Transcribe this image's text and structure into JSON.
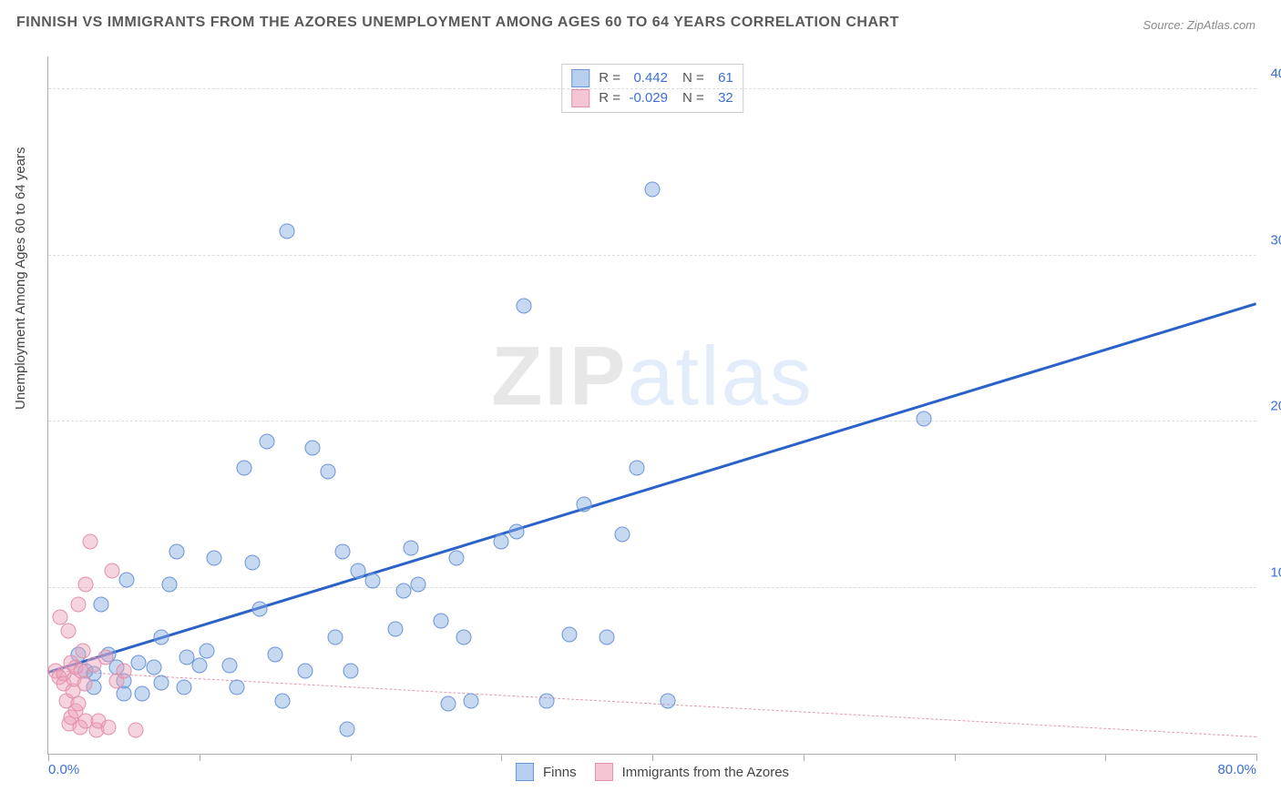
{
  "title": "FINNISH VS IMMIGRANTS FROM THE AZORES UNEMPLOYMENT AMONG AGES 60 TO 64 YEARS CORRELATION CHART",
  "source": "Source: ZipAtlas.com",
  "yaxis_label": "Unemployment Among Ages 60 to 64 years",
  "watermark_a": "ZIP",
  "watermark_b": "atlas",
  "chart": {
    "type": "scatter",
    "background_color": "#ffffff",
    "grid_color": "#dcdcdc",
    "axis_color": "#b0b0b0",
    "tick_label_color": "#3b6fd6",
    "tick_label_fontsize": 15,
    "xlim": [
      0,
      80
    ],
    "ylim": [
      0,
      42
    ],
    "xticks": [
      0,
      10,
      20,
      30,
      40,
      50,
      60,
      70,
      80
    ],
    "yticks": [
      10,
      20,
      30,
      40
    ],
    "xtick_labels": {
      "0": "0.0%",
      "80": "80.0%"
    },
    "ytick_labels": {
      "10": "10.0%",
      "20": "20.0%",
      "30": "30.0%",
      "40": "40.0%"
    },
    "marker_radius": 8.5,
    "marker_border_width": 1.2
  },
  "series": [
    {
      "id": "finns",
      "label": "Finns",
      "fill_color": "rgba(130,170,225,0.45)",
      "border_color": "#6a95d6",
      "swatch_fill": "#b9cfef",
      "swatch_border": "#6a95d6",
      "stats": {
        "R": "0.442",
        "N": "61"
      },
      "trend": {
        "x1": 0,
        "y1": 4.8,
        "x2": 80,
        "y2": 27.0,
        "color": "#2b62c9",
        "width": 3,
        "dash": false
      },
      "points": [
        [
          2,
          6
        ],
        [
          2.5,
          5
        ],
        [
          3,
          4.8
        ],
        [
          3,
          4
        ],
        [
          3.5,
          9
        ],
        [
          4,
          6
        ],
        [
          4.5,
          5.2
        ],
        [
          5,
          4.4
        ],
        [
          5,
          3.6
        ],
        [
          5.2,
          10.5
        ],
        [
          6,
          5.5
        ],
        [
          6.2,
          3.6
        ],
        [
          7,
          5.2
        ],
        [
          7.5,
          4.3
        ],
        [
          8,
          10.2
        ],
        [
          8.5,
          12.2
        ],
        [
          9,
          4
        ],
        [
          9.2,
          5.8
        ],
        [
          10,
          5.3
        ],
        [
          10.5,
          6.2
        ],
        [
          11,
          11.8
        ],
        [
          12,
          5.3
        ],
        [
          12.5,
          4
        ],
        [
          13,
          17.2
        ],
        [
          13.5,
          11.5
        ],
        [
          14,
          8.7
        ],
        [
          14.5,
          18.8
        ],
        [
          15,
          6
        ],
        [
          15.5,
          3.2
        ],
        [
          15.8,
          31.5
        ],
        [
          17,
          5
        ],
        [
          17.5,
          18.4
        ],
        [
          18.5,
          17
        ],
        [
          19,
          7
        ],
        [
          19.5,
          12.2
        ],
        [
          19.8,
          1.5
        ],
        [
          20,
          5
        ],
        [
          20.5,
          11
        ],
        [
          21.5,
          10.4
        ],
        [
          23,
          7.5
        ],
        [
          23.5,
          9.8
        ],
        [
          24,
          12.4
        ],
        [
          24.5,
          10.2
        ],
        [
          26,
          8
        ],
        [
          26.5,
          3
        ],
        [
          27,
          11.8
        ],
        [
          27.5,
          7
        ],
        [
          28,
          3.2
        ],
        [
          30,
          12.8
        ],
        [
          31,
          13.4
        ],
        [
          31.5,
          27
        ],
        [
          33,
          3.2
        ],
        [
          34.5,
          7.2
        ],
        [
          35.5,
          15
        ],
        [
          37,
          7
        ],
        [
          38,
          13.2
        ],
        [
          39,
          17.2
        ],
        [
          40,
          34
        ],
        [
          41,
          3.2
        ],
        [
          58,
          20.2
        ],
        [
          7.5,
          7
        ]
      ]
    },
    {
      "id": "azores",
      "label": "Immigrants from the Azores",
      "fill_color": "rgba(235,160,185,0.45)",
      "border_color": "#e290ab",
      "swatch_fill": "#f4c6d4",
      "swatch_border": "#e290ab",
      "stats": {
        "R": "-0.029",
        "N": "32"
      },
      "trend": {
        "x1": 0,
        "y1": 5.0,
        "x2": 80,
        "y2": 1.0,
        "color": "#e59aad",
        "width": 1.4,
        "dash": true
      },
      "points": [
        [
          0.5,
          5
        ],
        [
          0.7,
          4.6
        ],
        [
          0.8,
          8.2
        ],
        [
          1,
          4.8
        ],
        [
          1,
          4.2
        ],
        [
          1.2,
          3.2
        ],
        [
          1.3,
          7.4
        ],
        [
          1.4,
          1.8
        ],
        [
          1.5,
          2.2
        ],
        [
          1.5,
          5.5
        ],
        [
          1.6,
          3.8
        ],
        [
          1.7,
          4.5
        ],
        [
          1.8,
          5.2
        ],
        [
          1.8,
          2.6
        ],
        [
          2,
          3
        ],
        [
          2,
          9
        ],
        [
          2.1,
          1.6
        ],
        [
          2.2,
          5
        ],
        [
          2.3,
          6.2
        ],
        [
          2.4,
          4.2
        ],
        [
          2.5,
          10.2
        ],
        [
          2.5,
          2
        ],
        [
          2.8,
          12.8
        ],
        [
          3,
          5.4
        ],
        [
          3.2,
          1.4
        ],
        [
          3.3,
          2
        ],
        [
          3.8,
          5.8
        ],
        [
          4,
          1.6
        ],
        [
          4.2,
          11
        ],
        [
          4.5,
          4.4
        ],
        [
          5,
          5
        ],
        [
          5.8,
          1.4
        ]
      ]
    }
  ],
  "stats_legend": {
    "R_label": "R =",
    "N_label": "N ="
  }
}
